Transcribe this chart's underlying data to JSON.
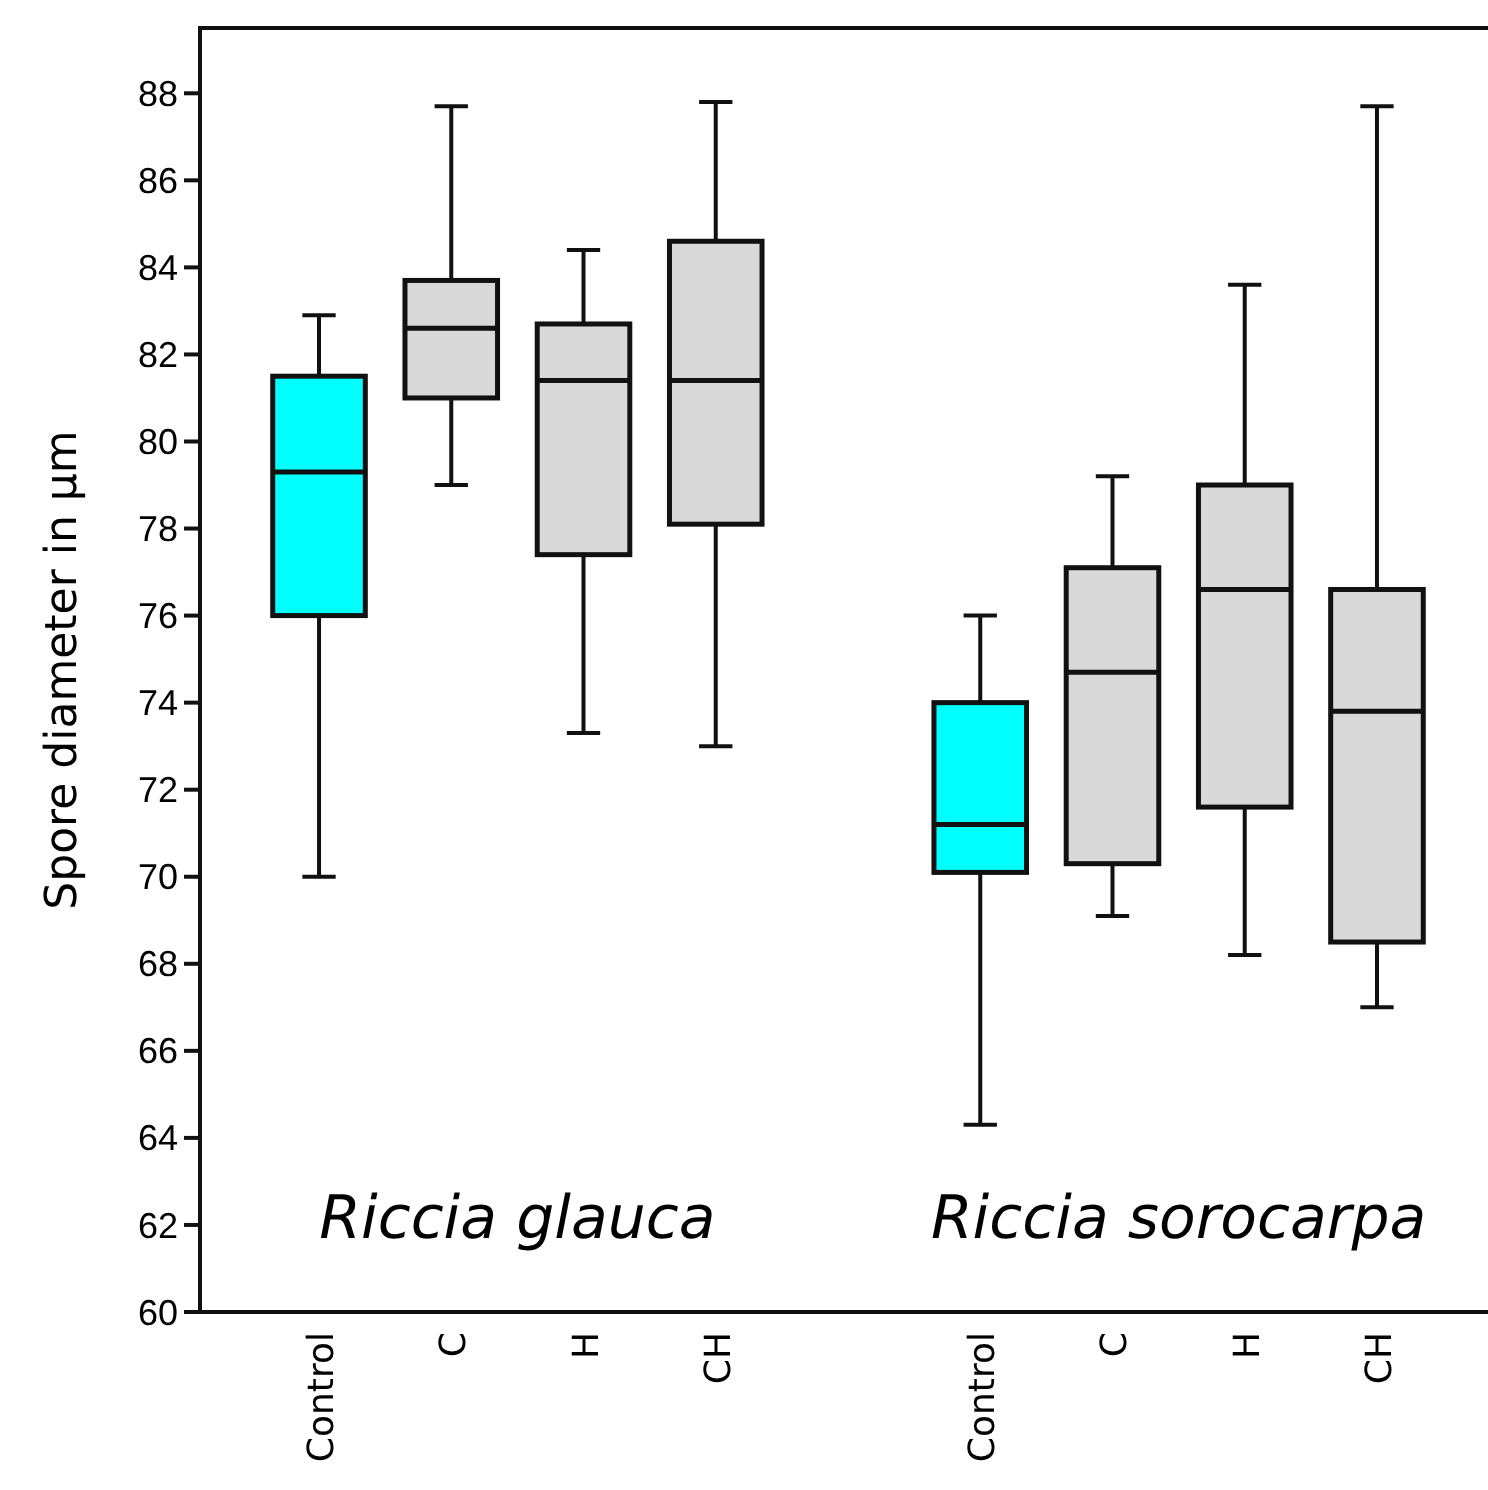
{
  "chart_data": {
    "type": "box",
    "ylabel": "Spore diameter in μm",
    "categories": [
      "Control",
      "C",
      "H",
      "CH",
      null,
      "Control",
      "C",
      "H",
      "CH"
    ],
    "colors": [
      "#00ffff",
      "#d9d9d9",
      "#d9d9d9",
      "#d9d9d9",
      null,
      "#00ffff",
      "#d9d9d9",
      "#d9d9d9",
      "#d9d9d9"
    ],
    "boxes": [
      {
        "low": 70.0,
        "q1": 76.0,
        "median": 79.3,
        "q3": 81.5,
        "high": 82.9
      },
      {
        "low": 79.0,
        "q1": 81.0,
        "median": 82.6,
        "q3": 83.7,
        "high": 87.7
      },
      {
        "low": 73.3,
        "q1": 77.4,
        "median": 81.4,
        "q3": 82.7,
        "high": 84.4
      },
      {
        "low": 73.0,
        "q1": 78.1,
        "median": 81.4,
        "q3": 84.6,
        "high": 87.8
      },
      null,
      {
        "low": 64.3,
        "q1": 70.1,
        "median": 71.2,
        "q3": 74.0,
        "high": 76.0
      },
      {
        "low": 69.1,
        "q1": 70.3,
        "median": 74.7,
        "q3": 77.1,
        "high": 79.2
      },
      {
        "low": 68.2,
        "q1": 71.6,
        "median": 76.6,
        "q3": 79.0,
        "high": 83.6
      },
      {
        "low": 67.0,
        "q1": 68.5,
        "median": 73.8,
        "q3": 76.6,
        "high": 87.7
      }
    ],
    "annotations": [
      "Riccia glauca",
      "Riccia sorocarpa"
    ],
    "ylim": [
      60,
      89.5
    ],
    "yticks": [
      60,
      62,
      64,
      66,
      68,
      70,
      72,
      74,
      76,
      78,
      80,
      82,
      84,
      86,
      88
    ],
    "grid": false
  }
}
